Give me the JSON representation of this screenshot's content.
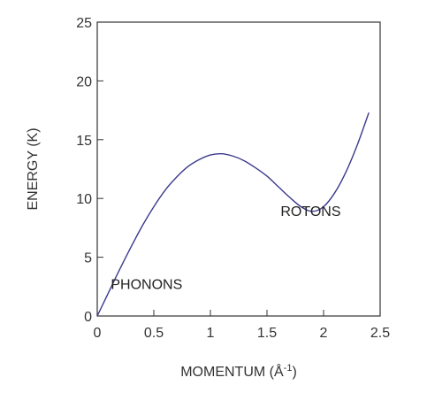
{
  "chart_data": {
    "type": "line",
    "title": "",
    "xlabel": "MOMENTUM (Å",
    "xlabel_sup": "-1",
    "xlabel_close": ")",
    "ylabel": "ENERGY (K)",
    "xlim": [
      0,
      2.5
    ],
    "ylim": [
      0,
      25
    ],
    "xticks": [
      0,
      0.5,
      1,
      1.5,
      2,
      2.5
    ],
    "xtick_labels": [
      "0",
      "0.5",
      "1",
      "1.5",
      "2",
      "2.5"
    ],
    "yticks": [
      0,
      5,
      10,
      15,
      20,
      25
    ],
    "ytick_labels": [
      "0",
      "5",
      "10",
      "15",
      "20",
      "25"
    ],
    "grid": false,
    "line_color": "#3b3a8c",
    "series": [
      {
        "x": [
          0,
          0.1,
          0.2,
          0.3,
          0.4,
          0.5,
          0.6,
          0.7,
          0.8,
          0.9,
          1.0,
          1.1,
          1.2,
          1.3,
          1.4,
          1.5,
          1.6,
          1.7,
          1.8,
          1.9,
          2.0,
          2.1,
          2.2,
          2.3,
          2.4
        ],
        "y": [
          0,
          2.0,
          4.0,
          5.9,
          7.7,
          9.3,
          10.7,
          11.8,
          12.7,
          13.3,
          13.7,
          13.8,
          13.6,
          13.2,
          12.6,
          11.9,
          11.0,
          10.1,
          9.3,
          8.9,
          9.3,
          10.5,
          12.3,
          14.6,
          17.3
        ]
      }
    ],
    "annotations": [
      {
        "text": "PHONONS",
        "x": 0.12,
        "y": 2.3
      },
      {
        "text": "ROTONS",
        "x": 1.62,
        "y": 8.5
      }
    ]
  }
}
